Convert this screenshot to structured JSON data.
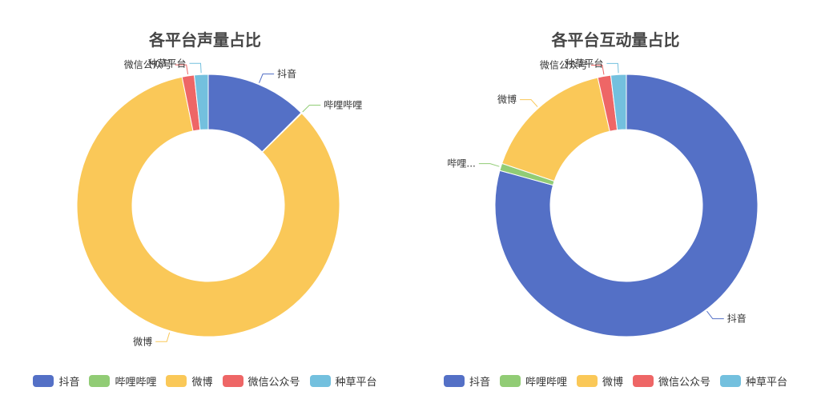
{
  "chart_data": [
    {
      "type": "pie",
      "title": "各平台声量占比",
      "categories": [
        "抖音",
        "哔哩哔哩",
        "微博",
        "微信公众号",
        "种草平台"
      ],
      "values": [
        12.5,
        0.1,
        84.2,
        1.5,
        1.7
      ],
      "legend_position": "bottom",
      "slice_labels": [
        "抖音",
        "哔哩哔哩",
        "微博",
        "微信公众号",
        "种草平台"
      ]
    },
    {
      "type": "pie",
      "title": "各平台互动量占比",
      "categories": [
        "抖音",
        "哔哩哔哩",
        "微博",
        "微信公众号",
        "种草平台"
      ],
      "values": [
        79.3,
        0.9,
        16.3,
        1.6,
        1.9
      ],
      "legend_position": "bottom",
      "slice_labels": [
        "抖音",
        "哔哩...",
        "微博",
        "微信公众号",
        "种草平台"
      ]
    }
  ],
  "colors": [
    "#5470c6",
    "#91cc75",
    "#fac858",
    "#ee6666",
    "#73c0de"
  ]
}
